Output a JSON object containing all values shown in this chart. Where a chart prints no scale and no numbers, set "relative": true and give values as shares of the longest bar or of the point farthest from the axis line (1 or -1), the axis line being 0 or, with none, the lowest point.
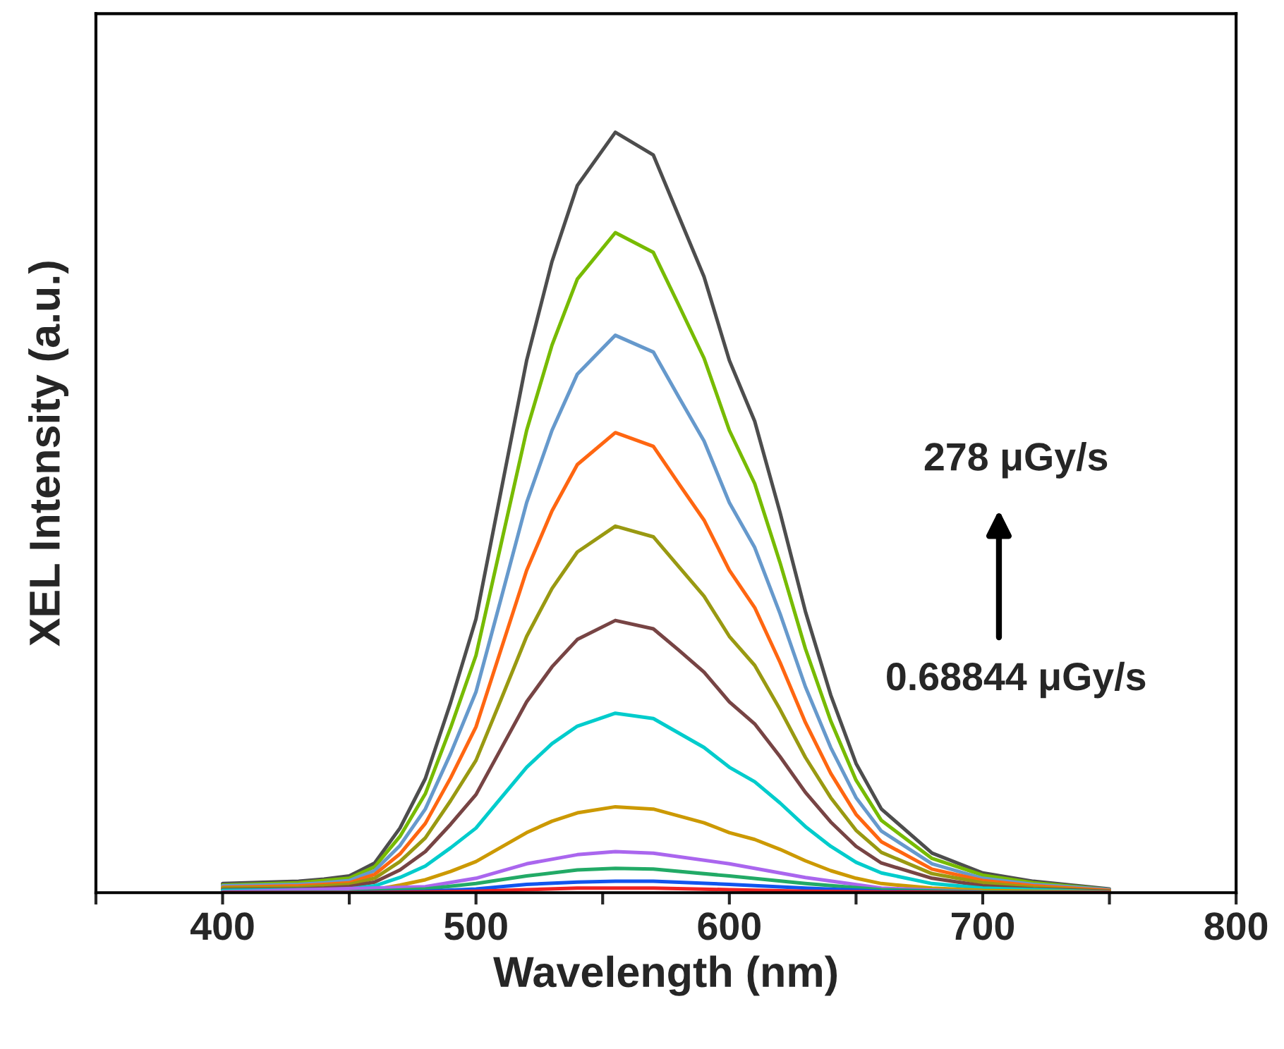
{
  "chart_data": {
    "type": "line",
    "relative": true,
    "xlabel": "Wavelength (nm)",
    "ylabel": "XEL Intensity (a.u.)",
    "xlim": [
      350,
      800
    ],
    "xticks": [
      {
        "value": 350,
        "label": null
      },
      400,
      {
        "value": 450,
        "label": null
      },
      500,
      {
        "value": 550,
        "label": null
      },
      600,
      {
        "value": 650,
        "label": null
      },
      700,
      {
        "value": 750,
        "label": null
      },
      800
    ],
    "x": [
      400,
      430,
      440,
      450,
      460,
      470,
      480,
      490,
      500,
      510,
      520,
      530,
      540,
      555,
      570,
      580,
      590,
      600,
      610,
      620,
      630,
      640,
      650,
      660,
      680,
      700,
      720,
      750
    ],
    "legend": false,
    "grid": false,
    "marker": "none",
    "line_style": "solid",
    "tick_labels": "x",
    "annotations": [
      "278 μGy/s",
      "0.68844 μGy/s"
    ],
    "series": [
      {
        "color": "#4d4d4d",
        "values": [
          0.012,
          0.015,
          0.018,
          0.022,
          0.039,
          0.085,
          0.15,
          0.25,
          0.36,
          0.53,
          0.7,
          0.83,
          0.93,
          1.0,
          0.97,
          0.89,
          0.81,
          0.7,
          0.62,
          0.5,
          0.37,
          0.26,
          0.17,
          0.11,
          0.052,
          0.026,
          0.015,
          0.005
        ]
      },
      {
        "color": "#77bb00",
        "values": [
          0.01,
          0.013,
          0.016,
          0.019,
          0.034,
          0.074,
          0.13,
          0.217,
          0.312,
          0.46,
          0.608,
          0.72,
          0.807,
          0.868,
          0.842,
          0.773,
          0.703,
          0.608,
          0.538,
          0.434,
          0.321,
          0.226,
          0.148,
          0.095,
          0.045,
          0.023,
          0.013,
          0.004
        ]
      },
      {
        "color": "#6699cc",
        "values": [
          0.009,
          0.011,
          0.013,
          0.016,
          0.029,
          0.062,
          0.11,
          0.183,
          0.264,
          0.388,
          0.513,
          0.608,
          0.682,
          0.733,
          0.711,
          0.652,
          0.594,
          0.513,
          0.454,
          0.367,
          0.271,
          0.191,
          0.125,
          0.081,
          0.038,
          0.019,
          0.011,
          0.004
        ]
      },
      {
        "color": "#ff6611",
        "values": [
          0.007,
          0.009,
          0.011,
          0.013,
          0.024,
          0.051,
          0.091,
          0.151,
          0.218,
          0.321,
          0.424,
          0.502,
          0.563,
          0.605,
          0.587,
          0.538,
          0.49,
          0.424,
          0.375,
          0.303,
          0.224,
          0.157,
          0.103,
          0.067,
          0.031,
          0.016,
          0.009,
          0.003
        ]
      },
      {
        "color": "#999911",
        "values": [
          0.006,
          0.007,
          0.009,
          0.011,
          0.019,
          0.041,
          0.072,
          0.121,
          0.174,
          0.255,
          0.337,
          0.4,
          0.448,
          0.482,
          0.468,
          0.429,
          0.39,
          0.337,
          0.299,
          0.241,
          0.178,
          0.125,
          0.082,
          0.053,
          0.025,
          0.013,
          0.007,
          0.002
        ]
      },
      {
        "color": "#774444",
        "values": [
          0.004,
          0.005,
          0.006,
          0.008,
          0.014,
          0.03,
          0.054,
          0.09,
          0.129,
          0.19,
          0.251,
          0.297,
          0.333,
          0.358,
          0.347,
          0.319,
          0.29,
          0.251,
          0.222,
          0.179,
          0.132,
          0.093,
          0.061,
          0.039,
          0.019,
          0.009,
          0.005,
          0.002
        ]
      },
      {
        "color": "#00cccc",
        "values": [
          0.003,
          0.004,
          0.004,
          0.005,
          0.009,
          0.02,
          0.035,
          0.059,
          0.085,
          0.125,
          0.165,
          0.196,
          0.219,
          0.236,
          0.229,
          0.21,
          0.191,
          0.165,
          0.146,
          0.118,
          0.087,
          0.061,
          0.04,
          0.026,
          0.012,
          0.006,
          0.004,
          0.001
        ]
      },
      {
        "color": "#cc9900",
        "values": [
          0.001,
          0.002,
          0.002,
          0.002,
          0.004,
          0.01,
          0.017,
          0.028,
          0.041,
          0.06,
          0.079,
          0.094,
          0.105,
          0.113,
          0.11,
          0.101,
          0.092,
          0.079,
          0.07,
          0.057,
          0.042,
          0.029,
          0.019,
          0.012,
          0.006,
          0.003,
          0.002,
          0.001
        ]
      },
      {
        "color": "#aa66ee",
        "x": [
          400,
          450,
          480,
          500,
          520,
          540,
          555,
          570,
          600,
          630,
          660,
          700,
          750
        ],
        "values": [
          0.001,
          null,
          0.008,
          0.019,
          0.038,
          0.05,
          0.054,
          0.052,
          0.038,
          0.02,
          0.006,
          0.001,
          0.0
        ]
      },
      {
        "color": "#22aa66",
        "x": [
          400,
          450,
          480,
          500,
          520,
          540,
          555,
          570,
          600,
          630,
          660,
          700,
          750
        ],
        "values": [
          0.0,
          0.001,
          0.005,
          0.012,
          0.022,
          0.03,
          0.032,
          0.031,
          0.022,
          0.012,
          0.004,
          0.001,
          0.0
        ]
      },
      {
        "color": "#1155ee",
        "x": [
          400,
          450,
          480,
          500,
          520,
          540,
          555,
          570,
          600,
          630,
          660,
          700,
          750
        ],
        "values": [
          0.0,
          0.0,
          0.002,
          0.005,
          0.011,
          0.014,
          0.015,
          0.015,
          0.011,
          0.006,
          0.002,
          0.0,
          0.0
        ]
      },
      {
        "color": "#ee2222",
        "x": [
          400,
          450,
          480,
          500,
          520,
          540,
          555,
          570,
          600,
          630,
          660,
          700,
          750
        ],
        "values": [
          0.0,
          0.0,
          0.001,
          0.002,
          0.004,
          0.006,
          0.006,
          0.006,
          0.004,
          0.002,
          0.001,
          0.0,
          0.0
        ]
      }
    ]
  }
}
